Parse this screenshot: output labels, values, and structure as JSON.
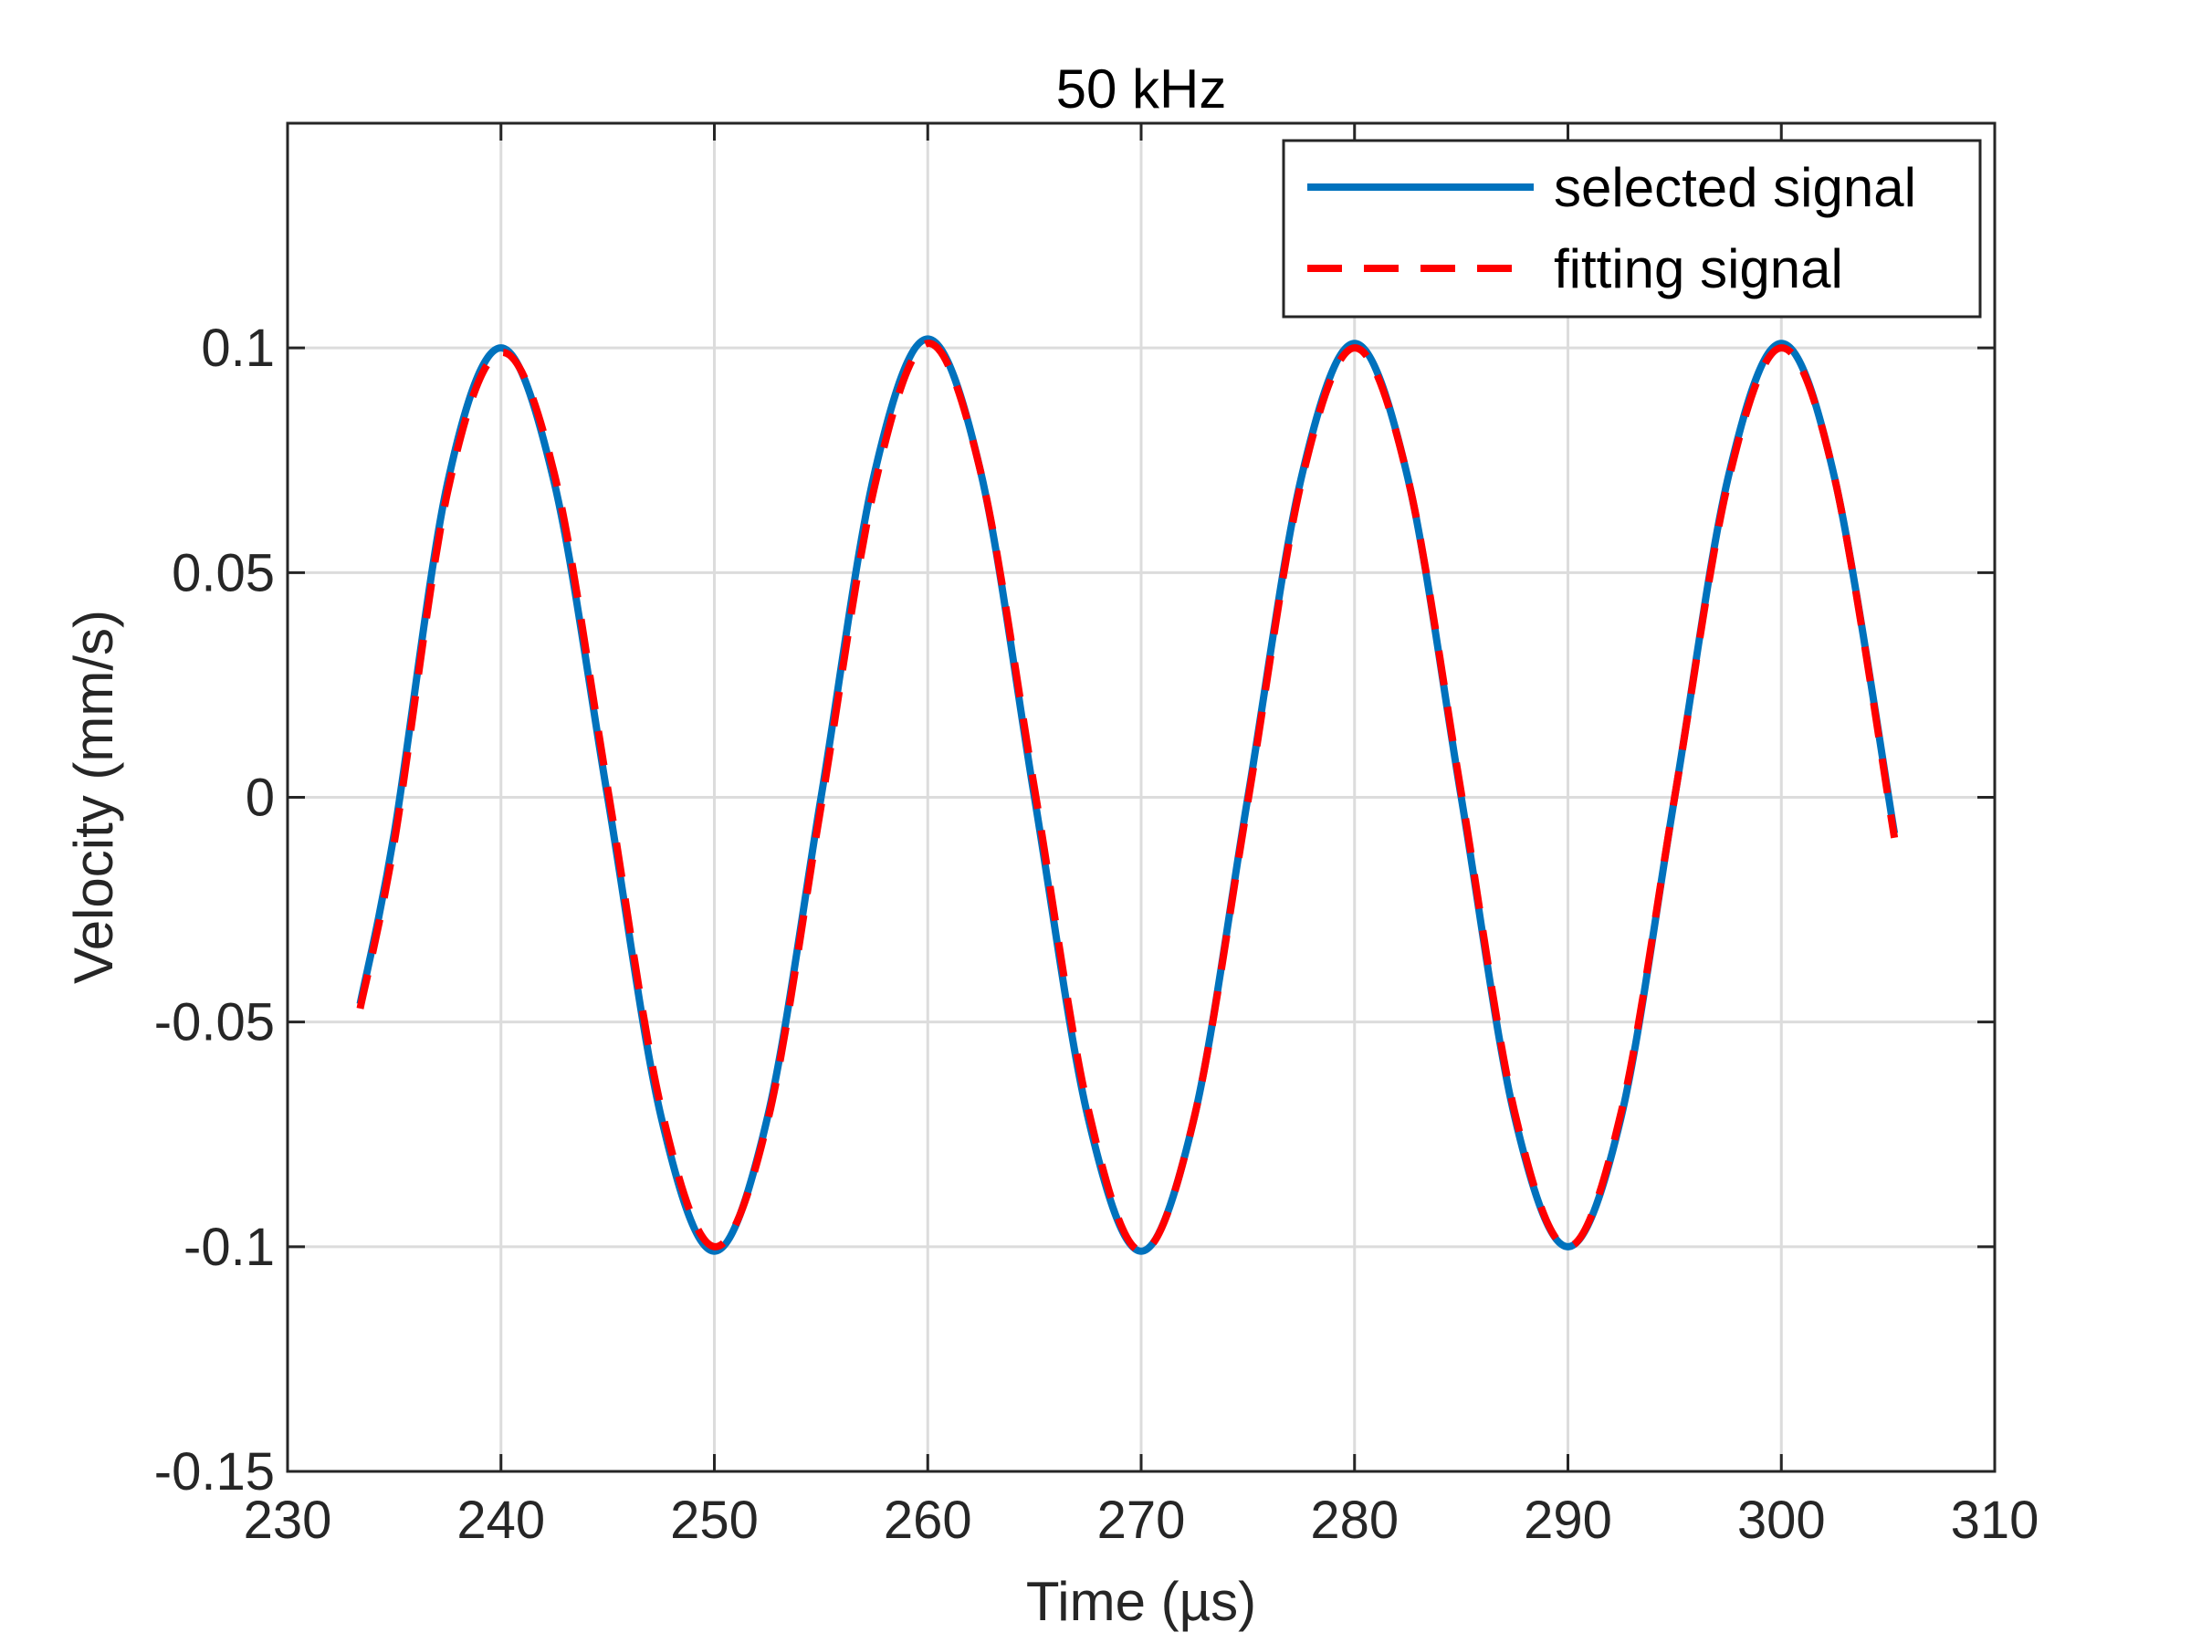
{
  "chart_data": {
    "type": "line",
    "title": "50 kHz",
    "xlabel": "Time (µs)",
    "ylabel": "Velocity (mm/s)",
    "xlim": [
      230,
      310
    ],
    "ylim": [
      -0.15,
      0.15
    ],
    "x_ticks": [
      230,
      240,
      250,
      260,
      270,
      280,
      290,
      300,
      310
    ],
    "x_tick_labels": [
      "230",
      "240",
      "250",
      "260",
      "270",
      "280",
      "290",
      "300",
      "310"
    ],
    "y_ticks": [
      -0.15,
      -0.1,
      -0.05,
      0,
      0.05,
      0.1
    ],
    "y_tick_labels": [
      "-0.15",
      "-0.1",
      "-0.05",
      "0",
      "0.05",
      "0.1"
    ],
    "grid": true,
    "legend_position": "top-right",
    "series": [
      {
        "name": "selected signal",
        "color": "#0072BD",
        "line_style": "solid",
        "x": [
          233.4,
          235,
          237.5,
          240,
          242.5,
          245,
          247.5,
          250,
          252.5,
          255,
          257.5,
          260,
          262.5,
          265,
          267.5,
          270,
          272.5,
          275,
          277.5,
          280,
          282.5,
          285,
          287.5,
          290,
          292.5,
          295,
          297.5,
          300,
          302.5,
          305.3
        ],
        "y": [
          -0.046,
          -0.008,
          0.07,
          0.1,
          0.07,
          0.0,
          -0.071,
          -0.101,
          -0.071,
          0.0,
          0.072,
          0.102,
          0.072,
          0.0,
          -0.071,
          -0.101,
          -0.071,
          0.0,
          0.071,
          0.101,
          0.071,
          0.0,
          -0.071,
          -0.1,
          -0.071,
          0.0,
          0.071,
          0.101,
          0.071,
          -0.008
        ]
      },
      {
        "name": "fitting signal",
        "color": "#FF0000",
        "line_style": "dashed",
        "x": [
          233.4,
          235,
          237.5,
          240,
          242.5,
          245,
          247.5,
          250,
          252.5,
          255,
          257.5,
          260,
          262.5,
          265,
          267.5,
          270,
          272.5,
          275,
          277.5,
          280,
          282.5,
          285,
          287.5,
          290,
          292.5,
          295,
          297.5,
          300,
          302.5,
          305.3
        ],
        "y": [
          -0.047,
          -0.01,
          0.068,
          0.099,
          0.072,
          0.002,
          -0.069,
          -0.1,
          -0.072,
          -0.002,
          0.069,
          0.101,
          0.072,
          0.002,
          -0.069,
          -0.101,
          -0.071,
          -0.001,
          0.07,
          0.1,
          0.071,
          0.001,
          -0.07,
          -0.1,
          -0.07,
          0.0,
          0.07,
          0.1,
          0.071,
          -0.009
        ]
      }
    ]
  }
}
